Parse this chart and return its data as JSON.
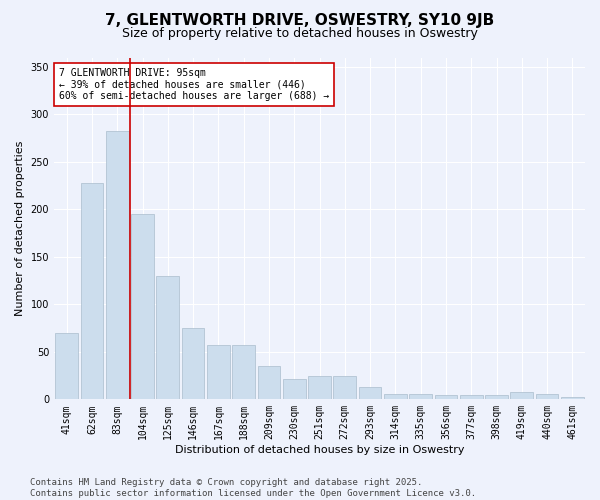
{
  "title": "7, GLENTWORTH DRIVE, OSWESTRY, SY10 9JB",
  "subtitle": "Size of property relative to detached houses in Oswestry",
  "xlabel": "Distribution of detached houses by size in Oswestry",
  "ylabel": "Number of detached properties",
  "categories": [
    "41sqm",
    "62sqm",
    "83sqm",
    "104sqm",
    "125sqm",
    "146sqm",
    "167sqm",
    "188sqm",
    "209sqm",
    "230sqm",
    "251sqm",
    "272sqm",
    "293sqm",
    "314sqm",
    "335sqm",
    "356sqm",
    "377sqm",
    "398sqm",
    "419sqm",
    "440sqm",
    "461sqm"
  ],
  "values": [
    70,
    228,
    283,
    195,
    130,
    75,
    57,
    57,
    35,
    21,
    25,
    25,
    13,
    6,
    6,
    5,
    5,
    5,
    8,
    6,
    2
  ],
  "bar_color": "#ccdded",
  "bar_edge_color": "#aabdcd",
  "vline_x": 2.5,
  "vline_color": "#cc0000",
  "annotation_text": "7 GLENTWORTH DRIVE: 95sqm\n← 39% of detached houses are smaller (446)\n60% of semi-detached houses are larger (688) →",
  "annotation_box_facecolor": "#ffffff",
  "annotation_box_edgecolor": "#cc0000",
  "ylim": [
    0,
    360
  ],
  "yticks": [
    0,
    50,
    100,
    150,
    200,
    250,
    300,
    350
  ],
  "background_color": "#eef2fc",
  "grid_color": "#ffffff",
  "footer": "Contains HM Land Registry data © Crown copyright and database right 2025.\nContains public sector information licensed under the Open Government Licence v3.0.",
  "title_fontsize": 11,
  "subtitle_fontsize": 9,
  "xlabel_fontsize": 8,
  "ylabel_fontsize": 8,
  "tick_fontsize": 7,
  "annotation_fontsize": 7,
  "footer_fontsize": 6.5
}
